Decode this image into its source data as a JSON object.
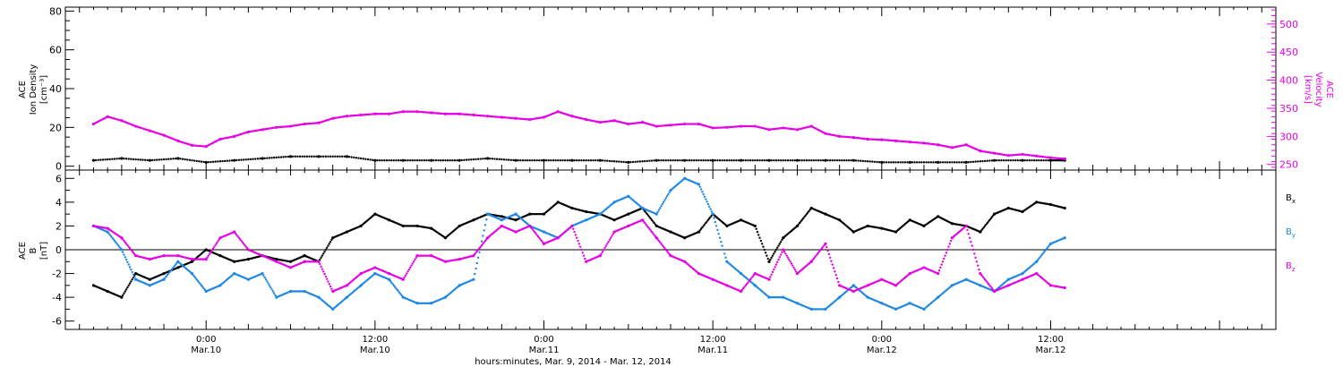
{
  "colors": {
    "black": "#000000",
    "magenta": "#e600e6",
    "blue": "#1e88e5"
  },
  "chart_data": [
    {
      "type": "scatter",
      "panel": "top",
      "ylabel_left": [
        "ACE",
        "Ion Density",
        "[cm⁻³]"
      ],
      "ylabel_right": [
        "ACE",
        "Velocity",
        "[km/s]"
      ],
      "ylim_left": [
        -2,
        82
      ],
      "ylim_right": [
        240,
        530
      ],
      "yticks_left": [
        "0",
        "20",
        "40",
        "60",
        "80"
      ],
      "yticks_right": [
        "250",
        "300",
        "350",
        "400",
        "450",
        "500"
      ],
      "series": [
        {
          "color": "#000000",
          "axis": "left",
          "x": [
            -8,
            -6,
            -4,
            -2,
            0,
            2,
            4,
            6,
            8,
            10,
            12,
            14,
            16,
            18,
            20,
            22,
            24,
            26,
            28,
            30,
            32,
            34,
            36,
            38,
            40,
            42,
            44,
            46,
            48,
            50,
            52,
            54,
            56,
            58,
            60,
            61
          ],
          "y": [
            3,
            4,
            3,
            4,
            2,
            3,
            4,
            5,
            5,
            5,
            3,
            3,
            3,
            3,
            4,
            3,
            3,
            3,
            3,
            2,
            3,
            3,
            3,
            3,
            3,
            3,
            3,
            3,
            2,
            2,
            2,
            2,
            3,
            3,
            3,
            3
          ]
        },
        {
          "color": "#e600e6",
          "axis": "right",
          "x": [
            -8,
            -7,
            -6,
            -5,
            -4,
            -3,
            -2,
            -1,
            0,
            1,
            2,
            3,
            4,
            5,
            6,
            7,
            8,
            9,
            10,
            11,
            12,
            13,
            14,
            15,
            16,
            17,
            18,
            19,
            20,
            21,
            22,
            23,
            24,
            25,
            26,
            27,
            28,
            29,
            30,
            31,
            32,
            33,
            34,
            35,
            36,
            37,
            38,
            39,
            40,
            41,
            42,
            43,
            44,
            45,
            46,
            47,
            48,
            49,
            50,
            51,
            52,
            53,
            54,
            55,
            56,
            57,
            58,
            59,
            60,
            61
          ],
          "y": [
            322,
            335,
            328,
            318,
            310,
            302,
            292,
            284,
            282,
            295,
            300,
            308,
            312,
            316,
            318,
            322,
            324,
            332,
            336,
            338,
            340,
            340,
            344,
            344,
            342,
            340,
            340,
            338,
            336,
            334,
            332,
            330,
            334,
            344,
            336,
            330,
            325,
            328,
            322,
            325,
            318,
            320,
            322,
            322,
            315,
            316,
            318,
            318,
            312,
            315,
            312,
            318,
            305,
            300,
            298,
            295,
            294,
            292,
            290,
            288,
            285,
            280,
            285,
            274,
            270,
            266,
            268,
            265,
            262,
            260
          ]
        }
      ]
    },
    {
      "type": "scatter",
      "panel": "bottom",
      "ylabel_left": [
        "ACE",
        "B",
        "[nT]"
      ],
      "ylim": [
        -6.7,
        6.7
      ],
      "yticks": [
        "-6",
        "-4",
        "-2",
        "0",
        "2",
        "4",
        "6"
      ],
      "legend": [
        "Bx",
        "By",
        "Bz"
      ],
      "series": [
        {
          "name": "Bx",
          "color": "#000000",
          "x": [
            -8,
            -7,
            -6,
            -5,
            -4,
            -3,
            -2,
            -1,
            0,
            1,
            2,
            3,
            4,
            5,
            6,
            7,
            8,
            9,
            10,
            11,
            12,
            13,
            14,
            15,
            16,
            17,
            18,
            19,
            20,
            21,
            22,
            23,
            24,
            25,
            26,
            27,
            28,
            29,
            30,
            31,
            32,
            33,
            34,
            35,
            36,
            37,
            38,
            39,
            40,
            41,
            42,
            43,
            44,
            45,
            46,
            47,
            48,
            49,
            50,
            51,
            52,
            53,
            54,
            55,
            56,
            57,
            58,
            59,
            60,
            61
          ],
          "y": [
            -3,
            -3.5,
            -4,
            -2,
            -2.5,
            -2,
            -1.5,
            -1,
            0,
            -0.5,
            -1,
            -0.8,
            -0.5,
            -0.8,
            -1,
            -0.5,
            -1,
            1,
            1.5,
            2,
            3,
            2.5,
            2,
            2,
            1.8,
            1,
            2,
            2.5,
            3,
            2.8,
            2.5,
            3,
            3,
            4,
            3.5,
            3.2,
            3,
            2.5,
            3,
            3.5,
            2,
            1.5,
            1,
            1.5,
            3,
            2,
            2.5,
            2,
            -1,
            1,
            2,
            3.5,
            3,
            2.5,
            1.5,
            2,
            1.8,
            1.5,
            2.5,
            2,
            2.8,
            2.2,
            2,
            1.5,
            3,
            3.5,
            3.2,
            4,
            3.8,
            3.5
          ]
        },
        {
          "name": "By",
          "color": "#1e88e5",
          "x": [
            -8,
            -7,
            -6,
            -5,
            -4,
            -3,
            -2,
            -1,
            0,
            1,
            2,
            3,
            4,
            5,
            6,
            7,
            8,
            9,
            10,
            11,
            12,
            13,
            14,
            15,
            16,
            17,
            18,
            19,
            20,
            21,
            22,
            23,
            24,
            25,
            26,
            27,
            28,
            29,
            30,
            31,
            32,
            33,
            34,
            35,
            36,
            37,
            38,
            39,
            40,
            41,
            42,
            43,
            44,
            45,
            46,
            47,
            48,
            49,
            50,
            51,
            52,
            53,
            54,
            55,
            56,
            57,
            58,
            59,
            60,
            61
          ],
          "y": [
            2,
            1.5,
            0,
            -2.5,
            -3,
            -2.5,
            -1,
            -2,
            -3.5,
            -3,
            -2,
            -2.5,
            -2,
            -4,
            -3.5,
            -3.5,
            -4,
            -5,
            -4,
            -3,
            -2,
            -2.5,
            -4,
            -4.5,
            -4.5,
            -4,
            -3,
            -2.5,
            3,
            2.5,
            3,
            2,
            1.5,
            1,
            2,
            2.5,
            3,
            4,
            4.5,
            3.5,
            3,
            5,
            6,
            5.5,
            3,
            -1,
            -2,
            -3,
            -4,
            -4,
            -4.5,
            -5,
            -5,
            -4,
            -3,
            -4,
            -4.5,
            -5,
            -4.5,
            -5,
            -4,
            -3,
            -2.5,
            -3,
            -3.5,
            -2.5,
            -2,
            -1,
            0.5,
            1
          ]
        },
        {
          "name": "Bz",
          "color": "#e600e6",
          "x": [
            -8,
            -7,
            -6,
            -5,
            -4,
            -3,
            -2,
            -1,
            0,
            1,
            2,
            3,
            4,
            5,
            6,
            7,
            8,
            9,
            10,
            11,
            12,
            13,
            14,
            15,
            16,
            17,
            18,
            19,
            20,
            21,
            22,
            23,
            24,
            25,
            26,
            27,
            28,
            29,
            30,
            31,
            32,
            33,
            34,
            35,
            36,
            37,
            38,
            39,
            40,
            41,
            42,
            43,
            44,
            45,
            46,
            47,
            48,
            49,
            50,
            51,
            52,
            53,
            54,
            55,
            56,
            57,
            58,
            59,
            60,
            61
          ],
          "y": [
            2,
            1.8,
            1,
            -0.5,
            -0.8,
            -0.5,
            -0.5,
            -0.8,
            -0.8,
            1,
            1.5,
            0,
            -0.5,
            -1,
            -1.5,
            -1,
            -1,
            -3.5,
            -3,
            -2,
            -1.5,
            -2,
            -2.5,
            -0.5,
            -0.5,
            -1,
            -0.8,
            -0.5,
            1,
            2,
            1.5,
            2,
            0.5,
            1,
            2,
            -1,
            -0.5,
            1.5,
            2,
            2.5,
            1,
            -0.5,
            -1,
            -2,
            -2.5,
            -3,
            -3.5,
            -2,
            -2.5,
            0,
            -2,
            -1,
            0.5,
            -3,
            -3.5,
            -3,
            -2.5,
            -3,
            -2,
            -1.5,
            -2,
            1,
            2,
            -2,
            -3.5,
            -3,
            -2.5,
            -2,
            -3,
            -3.2
          ]
        }
      ]
    }
  ],
  "x_axis": {
    "xlim": [
      -10,
      76
    ],
    "major_ticks": [
      {
        "x": 0,
        "time": "0:00",
        "date": "Mar.10"
      },
      {
        "x": 12,
        "time": "12:00",
        "date": "Mar.10"
      },
      {
        "x": 24,
        "time": "0:00",
        "date": "Mar.11"
      },
      {
        "x": 36,
        "time": "12:00",
        "date": "Mar.11"
      },
      {
        "x": 48,
        "time": "0:00",
        "date": "Mar.12"
      },
      {
        "x": 60,
        "time": "12:00",
        "date": "Mar.12"
      }
    ],
    "label": "hours:minutes,  Mar.  9, 2014 - Mar. 12, 2014"
  },
  "legend_labels": {
    "bx": "B",
    "bx_sub": "x",
    "by": "B",
    "by_sub": "y",
    "bz": "B",
    "bz_sub": "z"
  }
}
